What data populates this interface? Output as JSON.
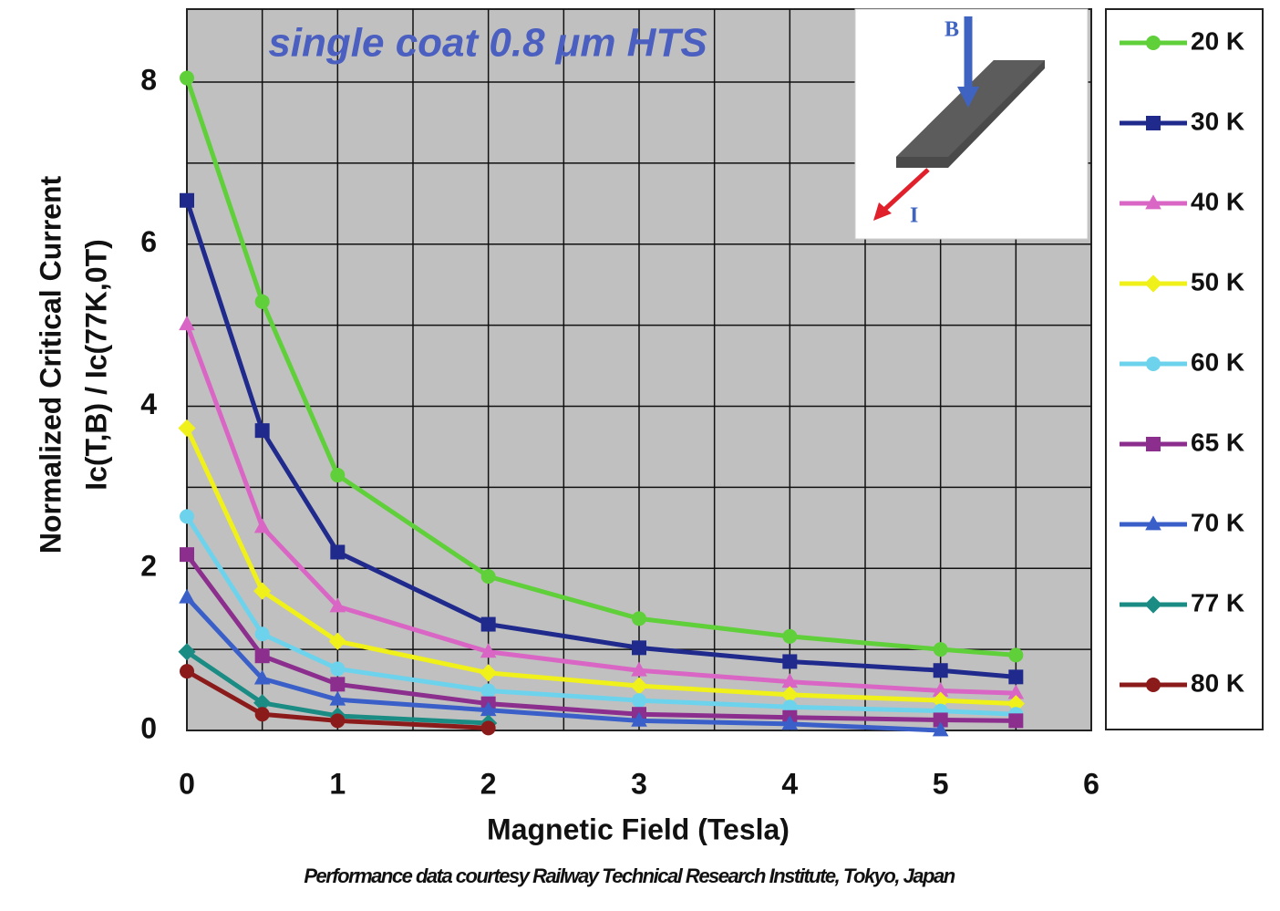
{
  "chart_data": {
    "type": "line",
    "title": "single coat 0.8 μm HTS",
    "xlabel": "Magnetic Field (Tesla)",
    "ylabel": [
      "Normalized Critical Current",
      "Ic(T,B) / Ic(77K,0T)"
    ],
    "footnote": "Performance data courtesy Railway Technical Research Institute, Tokyo, Japan",
    "inset_labels": [
      "B",
      "I"
    ],
    "x": [
      0,
      0.5,
      1,
      2,
      3,
      4,
      5,
      5.5
    ],
    "xlim": [
      0,
      6
    ],
    "xticks": [
      0,
      1,
      2,
      3,
      4,
      5,
      6
    ],
    "ylim": [
      0,
      8.9
    ],
    "yticks": [
      0,
      2,
      4,
      6,
      8
    ],
    "xgrid": [
      0.5,
      1,
      1.5,
      2,
      2.5,
      3,
      3.5,
      4,
      4.5,
      5,
      5.5
    ],
    "ygrid": [
      1,
      2,
      3,
      4,
      5,
      6,
      7,
      8
    ],
    "plot_background": "#c0c0c0",
    "legend": "right",
    "series": [
      {
        "name": "20 K",
        "color": "#5fcf3a",
        "marker": "circle",
        "values": [
          8.05,
          5.29,
          3.15,
          1.9,
          1.38,
          1.16,
          1.0,
          0.93
        ]
      },
      {
        "name": "30 K",
        "color": "#1f2a8c",
        "marker": "square",
        "values": [
          6.54,
          3.7,
          2.2,
          1.31,
          1.02,
          0.85,
          0.74,
          0.66
        ]
      },
      {
        "name": "40 K",
        "color": "#d966c4",
        "marker": "triangle",
        "values": [
          5.01,
          2.51,
          1.53,
          0.97,
          0.74,
          0.6,
          0.49,
          0.46
        ]
      },
      {
        "name": "50 K",
        "color": "#f0f01a",
        "marker": "diamond",
        "values": [
          3.73,
          1.72,
          1.1,
          0.71,
          0.55,
          0.44,
          0.37,
          0.33
        ]
      },
      {
        "name": "60 K",
        "color": "#6dd3ec",
        "marker": "circle",
        "values": [
          2.64,
          1.19,
          0.76,
          0.49,
          0.37,
          0.29,
          0.24,
          0.2
        ]
      },
      {
        "name": "65 K",
        "color": "#8b2e8e",
        "marker": "square",
        "values": [
          2.17,
          0.92,
          0.57,
          0.33,
          0.2,
          0.16,
          0.13,
          0.12
        ]
      },
      {
        "name": "70 K",
        "color": "#3a5fc8",
        "marker": "triangle",
        "values": [
          1.64,
          0.64,
          0.38,
          0.25,
          0.12,
          0.08,
          0.0,
          null
        ]
      },
      {
        "name": "77 K",
        "color": "#1a8c84",
        "marker": "diamond",
        "values": [
          0.97,
          0.34,
          0.18,
          0.09,
          null,
          null,
          null,
          null
        ]
      },
      {
        "name": "80 K",
        "color": "#8b1a1a",
        "marker": "circle",
        "values": [
          0.73,
          0.2,
          0.12,
          0.03,
          null,
          null,
          null,
          null
        ]
      }
    ]
  }
}
